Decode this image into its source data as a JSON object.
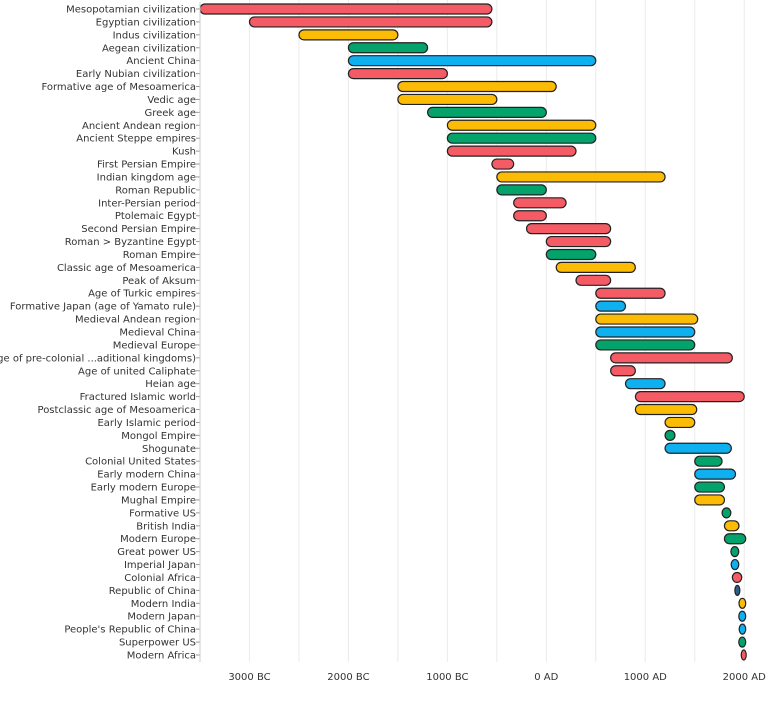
{
  "chart_data": {
    "type": "bar",
    "orientation": "horizontal-range",
    "title": "",
    "xlabel": "",
    "ylabel": "",
    "xlim": [
      -3500,
      2500
    ],
    "x_ticks": [
      {
        "value": -3000,
        "label": "3000 BC"
      },
      {
        "value": -2000,
        "label": "2000 BC"
      },
      {
        "value": -1000,
        "label": "1000 BC"
      },
      {
        "value": 0,
        "label": "0 AD"
      },
      {
        "value": 1000,
        "label": "1000 AD"
      },
      {
        "value": 2000,
        "label": "2000 AD"
      }
    ],
    "grid": true,
    "grid_step": 500,
    "colors": {
      "red": "#f55b65",
      "yellow": "#fcbc05",
      "green": "#03a36b",
      "blue": "#0eb0f0",
      "navy": "#2f5f8a"
    },
    "rows": [
      {
        "label": "Mesopotamian civilization",
        "start": -3500,
        "end": -550,
        "color": "red"
      },
      {
        "label": "Egyptian civilization",
        "start": -3000,
        "end": -550,
        "color": "red"
      },
      {
        "label": "Indus civilization",
        "start": -2500,
        "end": -1500,
        "color": "yellow"
      },
      {
        "label": "Aegean civilization",
        "start": -2000,
        "end": -1200,
        "color": "green"
      },
      {
        "label": "Ancient China",
        "start": -2000,
        "end": 500,
        "color": "blue"
      },
      {
        "label": "Early Nubian civilization",
        "start": -2000,
        "end": -1000,
        "color": "red"
      },
      {
        "label": "Formative age of Mesoamerica",
        "start": -1500,
        "end": 100,
        "color": "yellow"
      },
      {
        "label": "Vedic age",
        "start": -1500,
        "end": -500,
        "color": "yellow"
      },
      {
        "label": "Greek age",
        "start": -1200,
        "end": 0,
        "color": "green"
      },
      {
        "label": "Ancient Andean region",
        "start": -1000,
        "end": 500,
        "color": "yellow"
      },
      {
        "label": "Ancient Steppe empires",
        "start": -1000,
        "end": 500,
        "color": "green"
      },
      {
        "label": "Kush",
        "start": -1000,
        "end": 300,
        "color": "red"
      },
      {
        "label": "First Persian Empire",
        "start": -550,
        "end": -330,
        "color": "red"
      },
      {
        "label": "Indian kingdom age",
        "start": -500,
        "end": 1200,
        "color": "yellow"
      },
      {
        "label": "Roman Republic",
        "start": -500,
        "end": 0,
        "color": "green"
      },
      {
        "label": "Inter-Persian period",
        "start": -330,
        "end": 200,
        "color": "red"
      },
      {
        "label": "Ptolemaic Egypt",
        "start": -330,
        "end": 0,
        "color": "red"
      },
      {
        "label": "Second Persian Empire",
        "start": -200,
        "end": 650,
        "color": "red"
      },
      {
        "label": "Roman > Byzantine Egypt",
        "start": 0,
        "end": 650,
        "color": "red"
      },
      {
        "label": "Roman Empire",
        "start": 0,
        "end": 500,
        "color": "green"
      },
      {
        "label": "Classic age of Mesoamerica",
        "start": 100,
        "end": 900,
        "color": "yellow"
      },
      {
        "label": "Peak of Aksum",
        "start": 300,
        "end": 650,
        "color": "red"
      },
      {
        "label": "Age of Turkic empires",
        "start": 500,
        "end": 1200,
        "color": "red"
      },
      {
        "label": "Formative Japan (age of Yamato rule)",
        "start": 500,
        "end": 800,
        "color": "blue"
      },
      {
        "label": "Medieval Andean region",
        "start": 500,
        "end": 1530,
        "color": "yellow"
      },
      {
        "label": "Medieval China",
        "start": 500,
        "end": 1500,
        "color": "blue"
      },
      {
        "label": "Medieval Europe",
        "start": 500,
        "end": 1500,
        "color": "green"
      },
      {
        "label": "Age of pre-colonial ...aditional kingdoms)",
        "start": 650,
        "end": 1880,
        "color": "red"
      },
      {
        "label": "Age of united Caliphate",
        "start": 650,
        "end": 900,
        "color": "red"
      },
      {
        "label": "Heian age",
        "start": 800,
        "end": 1200,
        "color": "blue"
      },
      {
        "label": "Fractured Islamic world",
        "start": 900,
        "end": 2000,
        "color": "red"
      },
      {
        "label": "Postclassic age of Mesoamerica",
        "start": 900,
        "end": 1520,
        "color": "yellow"
      },
      {
        "label": "Early Islamic period",
        "start": 1200,
        "end": 1500,
        "color": "yellow"
      },
      {
        "label": "Mongol Empire",
        "start": 1200,
        "end": 1300,
        "color": "green"
      },
      {
        "label": "Shogunate",
        "start": 1200,
        "end": 1870,
        "color": "blue"
      },
      {
        "label": "Colonial United States",
        "start": 1500,
        "end": 1776,
        "color": "green"
      },
      {
        "label": "Early modern China",
        "start": 1500,
        "end": 1912,
        "color": "blue"
      },
      {
        "label": "Early modern Europe",
        "start": 1500,
        "end": 1800,
        "color": "green"
      },
      {
        "label": "Mughal Empire",
        "start": 1500,
        "end": 1800,
        "color": "yellow"
      },
      {
        "label": "Formative US",
        "start": 1776,
        "end": 1865,
        "color": "green"
      },
      {
        "label": "British India",
        "start": 1800,
        "end": 1947,
        "color": "yellow"
      },
      {
        "label": "Modern Europe",
        "start": 1800,
        "end": 2015,
        "color": "green"
      },
      {
        "label": "Great power US",
        "start": 1865,
        "end": 1945,
        "color": "green"
      },
      {
        "label": "Imperial Japan",
        "start": 1868,
        "end": 1945,
        "color": "blue"
      },
      {
        "label": "Colonial Africa",
        "start": 1880,
        "end": 1975,
        "color": "red"
      },
      {
        "label": "Republic of China",
        "start": 1912,
        "end": 1949,
        "color": "navy"
      },
      {
        "label": "Modern India",
        "start": 1947,
        "end": 2015,
        "color": "yellow"
      },
      {
        "label": "Modern Japan",
        "start": 1945,
        "end": 2015,
        "color": "blue"
      },
      {
        "label": "People's Republic of China",
        "start": 1949,
        "end": 2015,
        "color": "blue"
      },
      {
        "label": "Superpower US",
        "start": 1945,
        "end": 2015,
        "color": "green"
      },
      {
        "label": "Modern Africa",
        "start": 1975,
        "end": 2015,
        "color": "red"
      }
    ]
  }
}
